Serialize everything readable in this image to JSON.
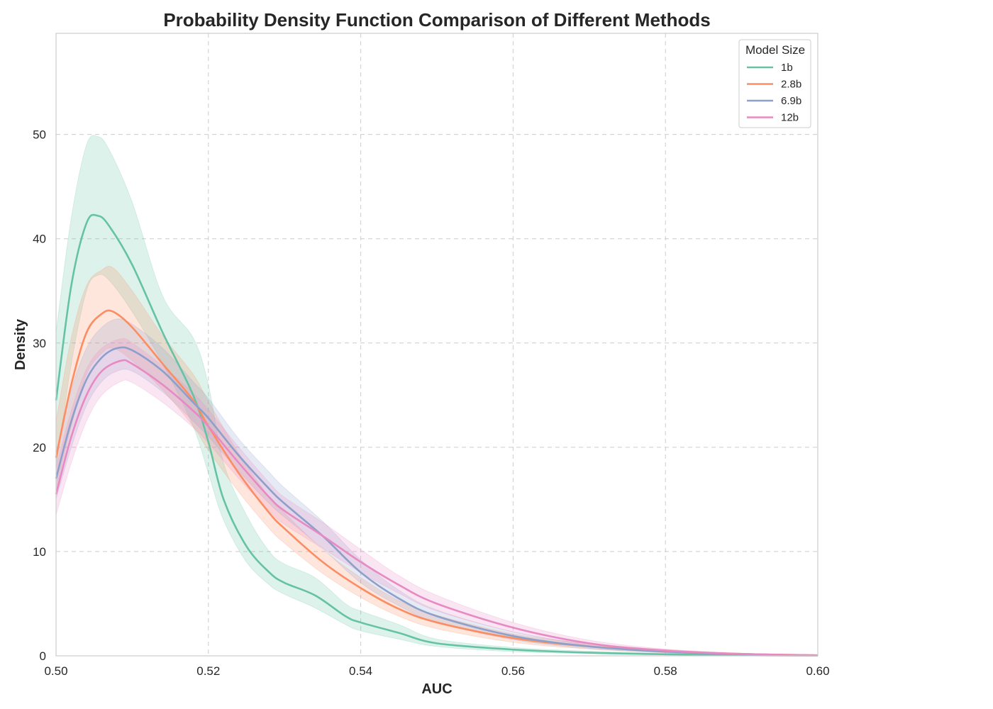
{
  "chart_data": {
    "type": "area",
    "title": "Probability Density Function Comparison of Different Methods",
    "xlabel": "AUC",
    "ylabel": "Density",
    "xlim": [
      0.5,
      0.6
    ],
    "ylim": [
      0,
      59.7
    ],
    "x_ticks": [
      0.5,
      0.52,
      0.54,
      0.56,
      0.58,
      0.6
    ],
    "x_tick_labels": [
      "0.50",
      "0.52",
      "0.54",
      "0.56",
      "0.58",
      "0.60"
    ],
    "y_ticks": [
      0,
      10,
      20,
      30,
      40,
      50
    ],
    "y_tick_labels": [
      "0",
      "10",
      "20",
      "30",
      "40",
      "50"
    ],
    "grid": true,
    "legend": {
      "title": "Model Size",
      "position": "top-right"
    },
    "series": [
      {
        "name": "1b",
        "color": "#66c2a5",
        "x": [
          0.5,
          0.502,
          0.504,
          0.5055,
          0.507,
          0.51,
          0.514,
          0.518,
          0.52,
          0.522,
          0.525,
          0.528,
          0.53,
          0.534,
          0.538,
          0.54,
          0.545,
          0.55,
          0.56,
          0.57,
          0.58,
          0.59,
          0.6
        ],
        "y": [
          24.5,
          35.5,
          41.5,
          42.2,
          41.2,
          37.5,
          31.0,
          25.0,
          20.5,
          15.0,
          10.5,
          8.0,
          7.0,
          5.8,
          3.8,
          3.2,
          2.2,
          1.2,
          0.6,
          0.3,
          0.15,
          0.06,
          0.02
        ],
        "lower": [
          18.0,
          28.0,
          35.0,
          36.5,
          36.0,
          33.0,
          28.0,
          22.0,
          17.5,
          13.0,
          9.0,
          6.8,
          5.9,
          4.6,
          3.0,
          2.4,
          1.6,
          0.9,
          0.4,
          0.2,
          0.08,
          0.03,
          0.01
        ],
        "upper": [
          31.0,
          42.0,
          49.0,
          49.8,
          48.5,
          43.5,
          34.5,
          30.5,
          26.0,
          18.5,
          13.5,
          10.0,
          8.8,
          7.5,
          5.0,
          4.3,
          3.0,
          1.6,
          0.8,
          0.45,
          0.25,
          0.1,
          0.04
        ]
      },
      {
        "name": "2.8b",
        "color": "#fc8d62",
        "x": [
          0.5,
          0.502,
          0.504,
          0.506,
          0.5075,
          0.51,
          0.514,
          0.518,
          0.52,
          0.524,
          0.528,
          0.53,
          0.535,
          0.54,
          0.545,
          0.55,
          0.56,
          0.57,
          0.58,
          0.59,
          0.6
        ],
        "y": [
          19.0,
          26.0,
          31.0,
          32.8,
          33.0,
          31.5,
          28.0,
          24.5,
          22.0,
          17.5,
          13.7,
          12.2,
          9.0,
          6.5,
          4.5,
          3.2,
          1.7,
          0.9,
          0.45,
          0.18,
          0.05
        ],
        "lower": [
          16.0,
          22.0,
          27.0,
          29.0,
          29.5,
          28.3,
          25.5,
          22.0,
          19.7,
          15.7,
          12.2,
          10.8,
          7.9,
          5.6,
          3.8,
          2.6,
          1.3,
          0.65,
          0.3,
          0.1,
          0.03
        ],
        "upper": [
          22.5,
          30.5,
          35.5,
          37.0,
          37.2,
          35.0,
          30.7,
          27.0,
          24.4,
          19.4,
          15.2,
          13.7,
          10.2,
          7.5,
          5.3,
          3.9,
          2.1,
          1.15,
          0.6,
          0.25,
          0.08
        ]
      },
      {
        "name": "6.9b",
        "color": "#8da0cb",
        "x": [
          0.5,
          0.502,
          0.504,
          0.506,
          0.508,
          0.51,
          0.514,
          0.518,
          0.52,
          0.524,
          0.528,
          0.53,
          0.535,
          0.54,
          0.545,
          0.55,
          0.56,
          0.57,
          0.58,
          0.59,
          0.6
        ],
        "y": [
          17.0,
          22.5,
          26.5,
          28.6,
          29.5,
          29.3,
          27.3,
          24.3,
          22.8,
          19.2,
          16.0,
          14.6,
          11.5,
          8.0,
          5.5,
          3.8,
          1.9,
          0.9,
          0.4,
          0.15,
          0.04
        ],
        "lower": [
          15.0,
          20.0,
          24.0,
          26.3,
          27.3,
          27.3,
          25.3,
          22.5,
          21.0,
          17.7,
          14.6,
          13.3,
          10.3,
          7.0,
          4.8,
          3.2,
          1.55,
          0.7,
          0.3,
          0.1,
          0.02
        ],
        "upper": [
          19.5,
          25.5,
          29.5,
          31.5,
          32.3,
          31.8,
          29.5,
          26.3,
          24.7,
          20.8,
          17.6,
          16.1,
          12.9,
          9.2,
          6.3,
          4.4,
          2.3,
          1.15,
          0.55,
          0.22,
          0.07
        ]
      },
      {
        "name": "12b",
        "color": "#e78ac3",
        "x": [
          0.5,
          0.502,
          0.504,
          0.506,
          0.5085,
          0.51,
          0.514,
          0.518,
          0.52,
          0.524,
          0.528,
          0.53,
          0.535,
          0.54,
          0.545,
          0.55,
          0.56,
          0.57,
          0.58,
          0.59,
          0.6
        ],
        "y": [
          15.5,
          21.0,
          25.0,
          27.3,
          28.3,
          28.0,
          26.0,
          23.5,
          22.0,
          18.5,
          15.2,
          13.9,
          11.5,
          9.0,
          6.8,
          5.0,
          2.7,
          1.2,
          0.5,
          0.18,
          0.05
        ],
        "lower": [
          13.5,
          18.5,
          22.5,
          25.0,
          26.3,
          26.2,
          24.3,
          21.9,
          20.4,
          17.0,
          13.9,
          12.6,
          10.3,
          8.0,
          6.0,
          4.3,
          2.3,
          1.0,
          0.38,
          0.12,
          0.03
        ],
        "upper": [
          18.0,
          23.5,
          27.5,
          29.5,
          30.4,
          30.0,
          27.8,
          25.2,
          23.6,
          20.0,
          16.6,
          15.2,
          12.8,
          10.2,
          7.7,
          5.8,
          3.2,
          1.5,
          0.65,
          0.25,
          0.08
        ]
      }
    ]
  }
}
